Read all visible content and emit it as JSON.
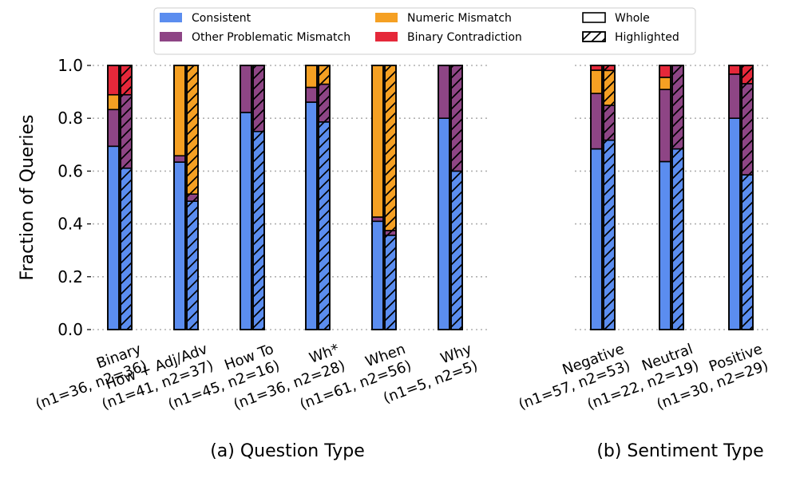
{
  "colors": {
    "consistent": "#5b8def",
    "other_problematic": "#8e4585",
    "numeric": "#f5a023",
    "binary": "#e5283a"
  },
  "legend": [
    {
      "key": "consistent",
      "label": "Consistent",
      "style": "fill"
    },
    {
      "key": "other_problematic",
      "label": "Other Problematic Mismatch",
      "style": "fill"
    },
    {
      "key": "numeric",
      "label": "Numeric Mismatch",
      "style": "fill"
    },
    {
      "key": "binary",
      "label": "Binary Contradiction",
      "style": "fill"
    },
    {
      "key": "whole",
      "label": "Whole",
      "style": "outline"
    },
    {
      "key": "highlighted",
      "label": "Highlighted",
      "style": "hatch"
    }
  ],
  "chart_data": [
    {
      "type": "bar",
      "stacked": true,
      "title": "(a) Question Type",
      "ylabel": "Fraction of Queries",
      "ylim": [
        0,
        1
      ],
      "yticks": [
        "0.0",
        "0.2",
        "0.4",
        "0.6",
        "0.8",
        "1.0"
      ],
      "grid": true,
      "categories": [
        {
          "name": "Binary",
          "counts": "(n1=36, n2=36)"
        },
        {
          "name": "How + Adj/Adv",
          "counts": "(n1=41, n2=37)"
        },
        {
          "name": "How To",
          "counts": "(n1=45, n2=16)"
        },
        {
          "name": "Wh*",
          "counts": "(n1=36, n2=28)"
        },
        {
          "name": "When",
          "counts": "(n1=61, n2=56)"
        },
        {
          "name": "Why",
          "counts": "(n1=5, n2=5)"
        }
      ],
      "series_order": [
        "consistent",
        "other_problematic",
        "numeric",
        "binary"
      ],
      "whole": [
        [
          0.694,
          0.139,
          0.056,
          0.111
        ],
        [
          0.634,
          0.024,
          0.342,
          0.0
        ],
        [
          0.822,
          0.178,
          0.0,
          0.0
        ],
        [
          0.861,
          0.056,
          0.083,
          0.0
        ],
        [
          0.41,
          0.016,
          0.574,
          0.0
        ],
        [
          0.8,
          0.2,
          0.0,
          0.0
        ]
      ],
      "highlighted": [
        [
          0.611,
          0.278,
          0.0,
          0.111
        ],
        [
          0.486,
          0.027,
          0.487,
          0.0
        ],
        [
          0.75,
          0.25,
          0.0,
          0.0
        ],
        [
          0.786,
          0.143,
          0.071,
          0.0
        ],
        [
          0.357,
          0.018,
          0.625,
          0.0
        ],
        [
          0.6,
          0.4,
          0.0,
          0.0
        ]
      ]
    },
    {
      "type": "bar",
      "stacked": true,
      "title": "(b) Sentiment Type",
      "ylim": [
        0,
        1
      ],
      "grid": true,
      "categories": [
        {
          "name": "Negative",
          "counts": "(n1=57, n2=53)"
        },
        {
          "name": "Neutral",
          "counts": "(n1=22, n2=19)"
        },
        {
          "name": "Positive",
          "counts": "(n1=30, n2=29)"
        }
      ],
      "series_order": [
        "consistent",
        "other_problematic",
        "numeric",
        "binary"
      ],
      "whole": [
        [
          0.684,
          0.21,
          0.088,
          0.018
        ],
        [
          0.636,
          0.273,
          0.046,
          0.045
        ],
        [
          0.8,
          0.167,
          0.0,
          0.033
        ]
      ],
      "highlighted": [
        [
          0.717,
          0.132,
          0.132,
          0.019
        ],
        [
          0.684,
          0.316,
          0.0,
          0.0
        ],
        [
          0.586,
          0.345,
          0.0,
          0.069
        ]
      ]
    }
  ]
}
